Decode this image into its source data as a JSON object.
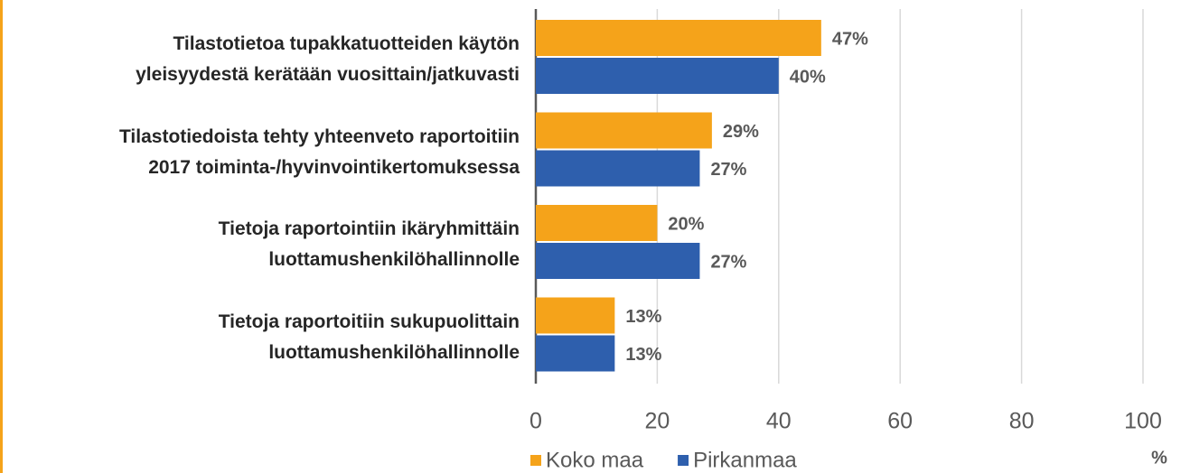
{
  "chart_data": {
    "type": "bar",
    "orientation": "horizontal",
    "categories": [
      "Tilastotietoa tupakkatuotteiden käytön\nyleisyydestä kerätään vuosittain/jatkuvasti",
      "Tilastotiedoista tehty yhteenveto raportoitiin\n2017 toiminta-/hyvinvointikertomuksessa",
      "Tietoja raportointiin ikäryhmittäin\nluottamushenkilöhallinnolle",
      "Tietoja raportoitiin sukupuolittain\nluottamushenkilöhallinnolle"
    ],
    "series": [
      {
        "name": "Koko maa",
        "color": "#f5a31a",
        "values": [
          47,
          29,
          20,
          13
        ],
        "value_labels": [
          "47%",
          "29%",
          "20%",
          "13%"
        ]
      },
      {
        "name": "Pirkanmaa",
        "color": "#2e5fad",
        "values": [
          40,
          27,
          27,
          13
        ],
        "value_labels": [
          "40%",
          "27%",
          "27%",
          "13%"
        ]
      }
    ],
    "x_label": "%",
    "xlim": [
      0,
      100
    ],
    "xticks": [
      0,
      20,
      40,
      60,
      80,
      100
    ],
    "grid": true,
    "legend": "bottom"
  }
}
